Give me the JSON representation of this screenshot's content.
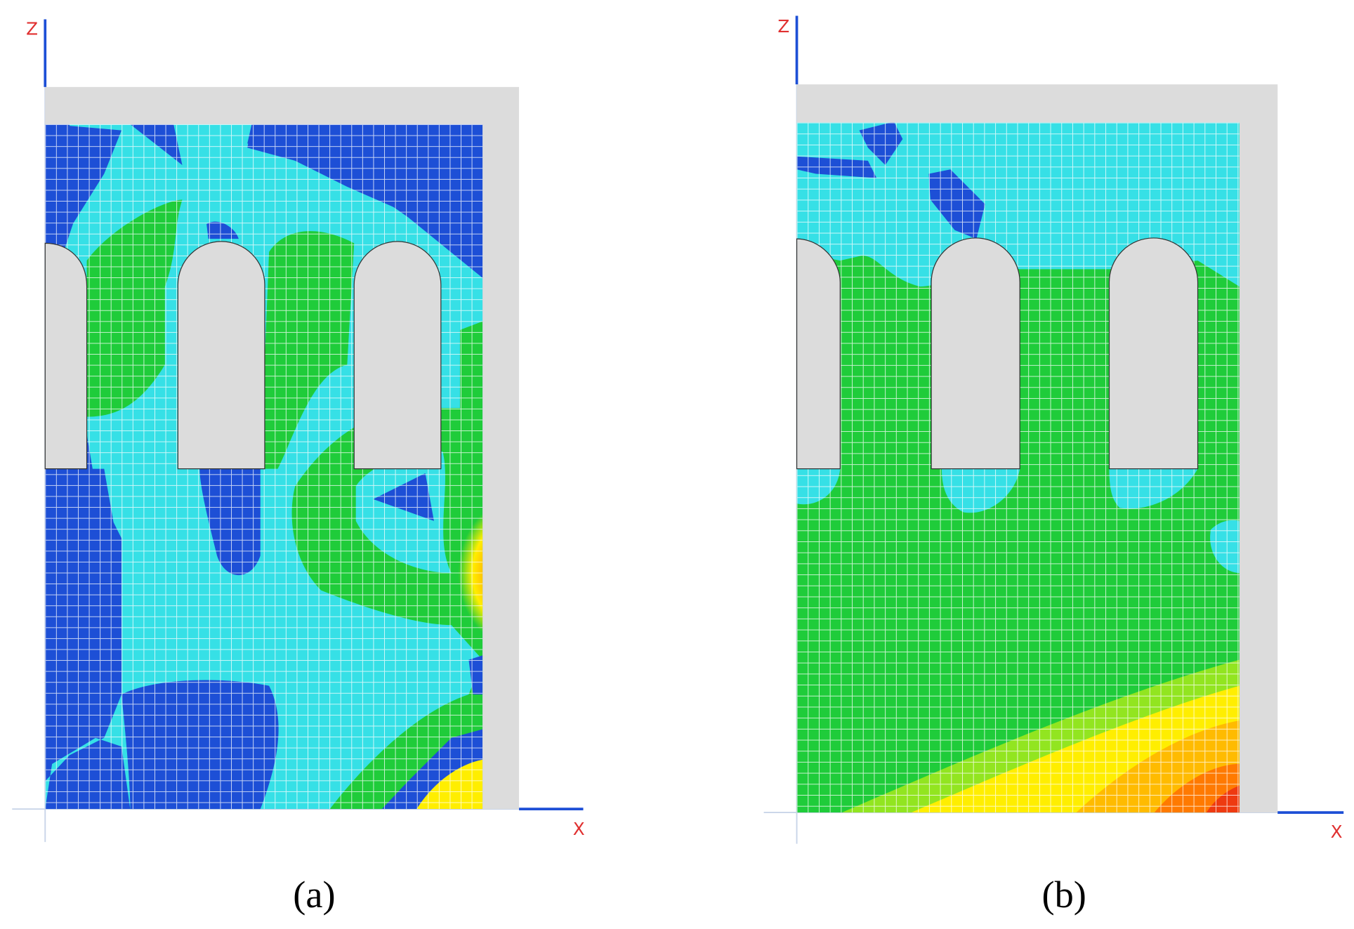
{
  "panels": [
    {
      "axis_z": "Z",
      "axis_x": "X",
      "label": "(a)"
    },
    {
      "axis_z": "Z",
      "axis_x": "X",
      "label": "(b)"
    }
  ]
}
